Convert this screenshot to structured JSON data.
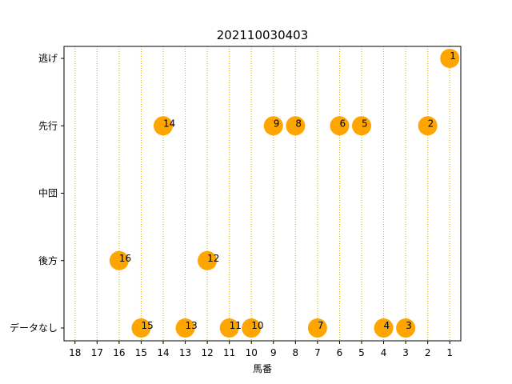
{
  "chart_data": {
    "type": "scatter",
    "title": "202110030403",
    "xlabel": "馬番",
    "ylabel": "",
    "x_axis_inverted": true,
    "xlim": [
      18.5,
      0.5
    ],
    "x_ticks": [
      18,
      17,
      16,
      15,
      14,
      13,
      12,
      11,
      10,
      9,
      8,
      7,
      6,
      5,
      4,
      3,
      2,
      1
    ],
    "y_categories": [
      "逃げ",
      "先行",
      "中団",
      "後方",
      "データなし"
    ],
    "grid": "vertical dotted lines at each horse number",
    "marker_color": "#FFA500",
    "grid_color": "#C8B400",
    "points": [
      {
        "x": 1,
        "y": "逃げ",
        "label": "1"
      },
      {
        "x": 2,
        "y": "先行",
        "label": "2"
      },
      {
        "x": 5,
        "y": "先行",
        "label": "5"
      },
      {
        "x": 6,
        "y": "先行",
        "label": "6"
      },
      {
        "x": 8,
        "y": "先行",
        "label": "8"
      },
      {
        "x": 9,
        "y": "先行",
        "label": "9"
      },
      {
        "x": 14,
        "y": "先行",
        "label": "14"
      },
      {
        "x": 12,
        "y": "後方",
        "label": "12"
      },
      {
        "x": 16,
        "y": "後方",
        "label": "16"
      },
      {
        "x": 3,
        "y": "データなし",
        "label": "3"
      },
      {
        "x": 4,
        "y": "データなし",
        "label": "4"
      },
      {
        "x": 7,
        "y": "データなし",
        "label": "7"
      },
      {
        "x": 10,
        "y": "データなし",
        "label": "10"
      },
      {
        "x": 11,
        "y": "データなし",
        "label": "11"
      },
      {
        "x": 13,
        "y": "データなし",
        "label": "13"
      },
      {
        "x": 15,
        "y": "データなし",
        "label": "15"
      }
    ]
  }
}
